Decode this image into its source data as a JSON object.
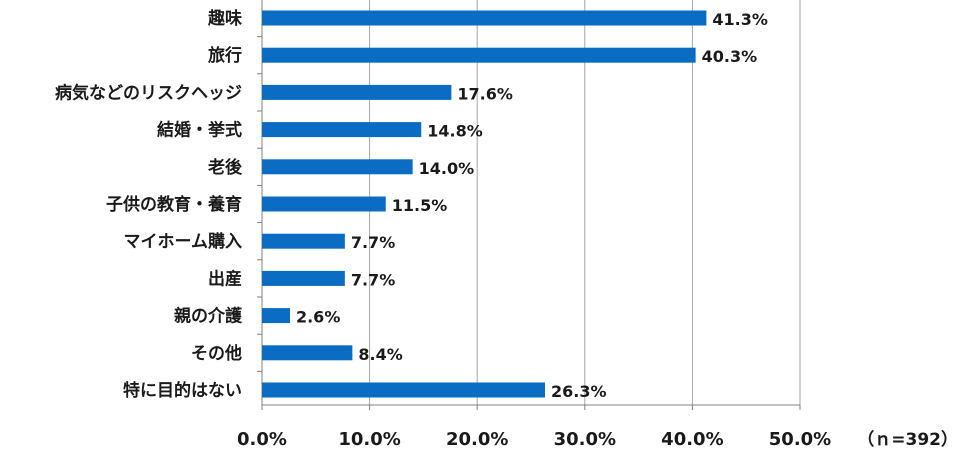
{
  "chart_data": {
    "type": "bar",
    "orientation": "horizontal",
    "categories": [
      "趣味",
      "旅行",
      "病気などのリスクヘッジ",
      "結婚・挙式",
      "老後",
      "子供の教育・養育",
      "マイホーム購入",
      "出産",
      "親の介護",
      "その他",
      "特に目的はない"
    ],
    "values": [
      41.3,
      40.3,
      17.6,
      14.8,
      14.0,
      11.5,
      7.7,
      7.7,
      2.6,
      8.4,
      26.3
    ],
    "value_labels": [
      "41.3%",
      "40.3%",
      "17.6%",
      "14.8%",
      "14.0%",
      "11.5%",
      "7.7%",
      "7.7%",
      "2.6%",
      "8.4%",
      "26.3%"
    ],
    "xlim": [
      0,
      50
    ],
    "x_ticks": [
      0,
      10,
      20,
      30,
      40,
      50
    ],
    "x_tick_labels": [
      "0.0%",
      "10.0%",
      "20.0%",
      "30.0%",
      "40.0%",
      "50.0%"
    ],
    "grid": true,
    "legend": "none",
    "annotation": "（ｎ=392）",
    "bar_color": "#0a6cc2"
  }
}
